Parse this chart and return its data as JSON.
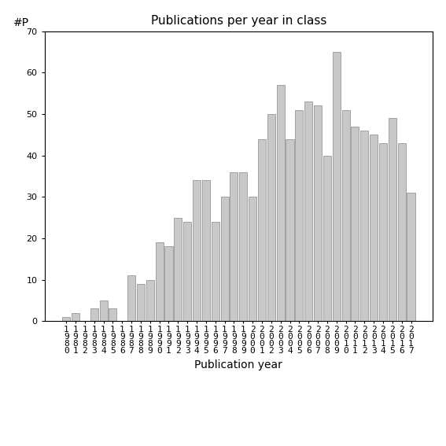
{
  "title": "Publications per year in class",
  "xlabel": "Publication year",
  "ylabel": "#P",
  "bar_color": "#c8c8c8",
  "bar_edgecolor": "#888888",
  "background_color": "#ffffff",
  "ylim": [
    0,
    70
  ],
  "yticks": [
    0,
    10,
    20,
    30,
    40,
    50,
    60,
    70
  ],
  "years": [
    1980,
    1981,
    1982,
    1983,
    1984,
    1985,
    1986,
    1987,
    1988,
    1989,
    1990,
    1991,
    1992,
    1993,
    1994,
    1995,
    1996,
    1997,
    1998,
    1999,
    2000,
    2001,
    2002,
    2003,
    2004,
    2005,
    2006,
    2007,
    2008,
    2009,
    2010,
    2011,
    2012,
    2013,
    2014,
    2015,
    2016,
    2017
  ],
  "values": [
    1,
    2,
    0,
    3,
    5,
    3,
    0,
    11,
    9,
    10,
    19,
    18,
    25,
    24,
    34,
    34,
    24,
    30,
    36,
    36,
    30,
    44,
    50,
    57,
    44,
    51,
    53,
    52,
    40,
    65,
    51,
    47,
    46,
    45,
    43,
    49,
    43,
    31
  ],
  "title_fontsize": 11,
  "axis_label_fontsize": 10,
  "tick_fontsize": 8
}
